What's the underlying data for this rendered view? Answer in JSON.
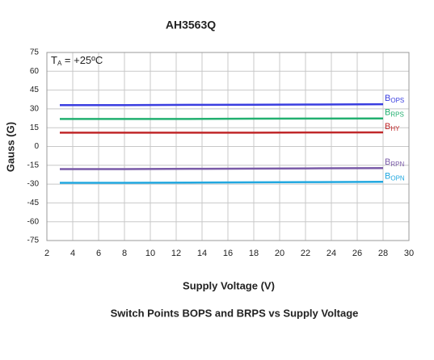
{
  "chart_data": {
    "type": "line",
    "title": "AH3563Q",
    "annotation": "TA = +25ºC",
    "x_label": "Supply Voltage (V)",
    "y_label": "Gauss (G)",
    "caption": "Switch Points BOPS and BRPS vs Supply Voltage",
    "x": [
      3,
      8,
      13,
      18,
      23,
      28
    ],
    "series": [
      {
        "name": "BOPS",
        "color": "#3a3ee0",
        "values": [
          33,
          33,
          33.2,
          33.3,
          33.5,
          33.7
        ]
      },
      {
        "name": "BRPS",
        "color": "#22b070",
        "values": [
          22,
          22,
          22,
          22.2,
          22.3,
          22.4
        ]
      },
      {
        "name": "BHY",
        "color": "#c0282a",
        "values": [
          11,
          11,
          11,
          11,
          11.2,
          11.3
        ]
      },
      {
        "name": "BRPN",
        "color": "#7a5ba8",
        "values": [
          -18,
          -18,
          -17.8,
          -17.6,
          -17.4,
          -17.2
        ]
      },
      {
        "name": "BOPN",
        "color": "#22a8e0",
        "values": [
          -29,
          -29,
          -28.8,
          -28.6,
          -28.4,
          -28.2
        ]
      }
    ],
    "xlim": [
      2,
      30
    ],
    "xticks": [
      2,
      4,
      6,
      8,
      10,
      12,
      14,
      16,
      18,
      20,
      22,
      24,
      26,
      28,
      30
    ],
    "ylim": [
      -75,
      75
    ],
    "yticks": [
      -75,
      -60,
      -45,
      -30,
      -15,
      0,
      15,
      30,
      45,
      60,
      75
    ],
    "grid": true
  }
}
